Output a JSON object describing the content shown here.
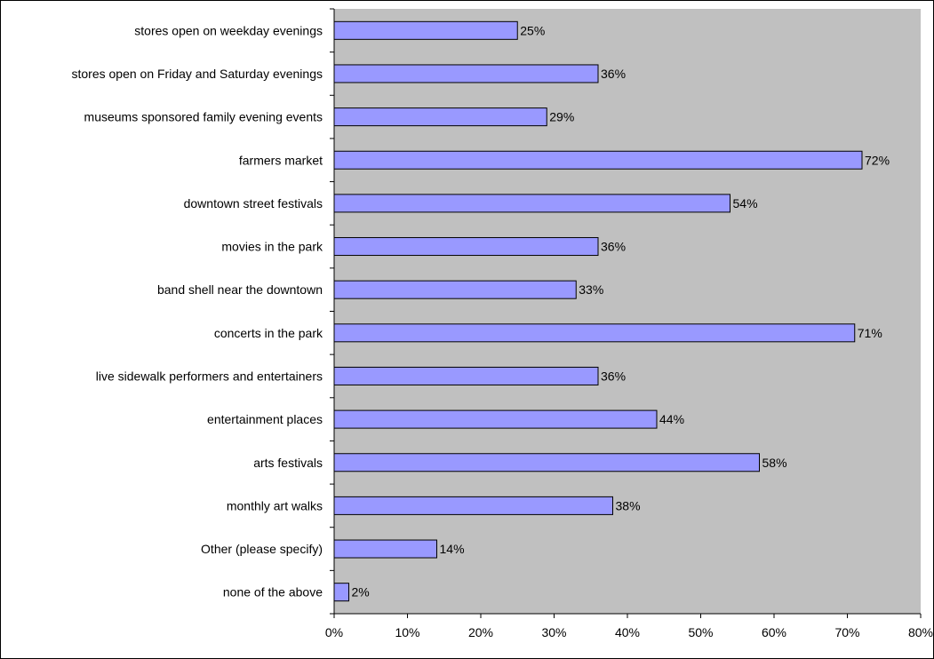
{
  "chart_data": {
    "type": "bar",
    "orientation": "horizontal",
    "categories": [
      "stores open on weekday evenings",
      "stores open on Friday and Saturday evenings",
      "museums sponsored family evening events",
      "farmers market",
      "downtown street festivals",
      "movies in the park",
      "band shell near the downtown",
      "concerts in the park",
      "live sidewalk performers and entertainers",
      "entertainment places",
      "arts festivals",
      "monthly art walks",
      "Other (please specify)",
      "none of the above"
    ],
    "values": [
      25,
      36,
      29,
      72,
      54,
      36,
      33,
      71,
      36,
      44,
      58,
      38,
      14,
      2
    ],
    "value_labels": [
      "25%",
      "36%",
      "29%",
      "72%",
      "54%",
      "36%",
      "33%",
      "71%",
      "36%",
      "44%",
      "58%",
      "38%",
      "14%",
      "2%"
    ],
    "xlim": [
      0,
      80
    ],
    "x_ticks": [
      0,
      10,
      20,
      30,
      40,
      50,
      60,
      70,
      80
    ],
    "x_tick_labels": [
      "0%",
      "10%",
      "20%",
      "30%",
      "40%",
      "50%",
      "60%",
      "70%",
      "80%"
    ],
    "title": "",
    "xlabel": "",
    "ylabel": "",
    "grid": false,
    "legend": "none",
    "colors": {
      "bar_fill": "#9999ff",
      "bar_stroke": "#000000",
      "plot_background": "#c0c0c0"
    }
  }
}
